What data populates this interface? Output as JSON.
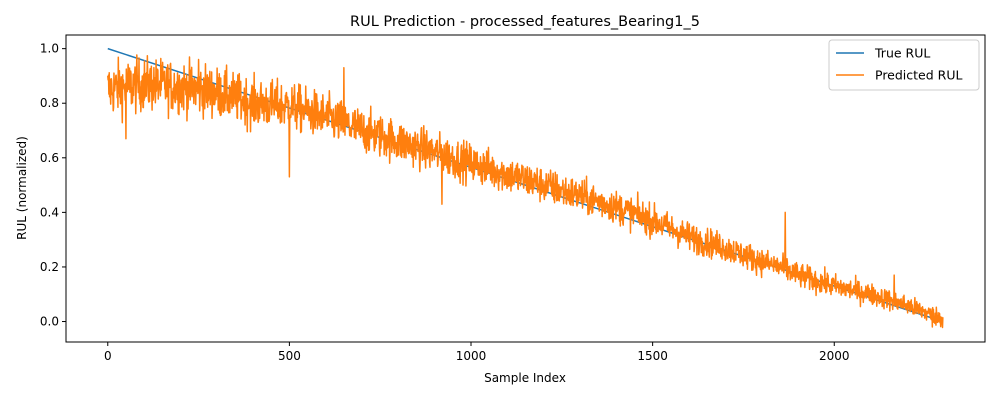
{
  "chart_data": {
    "type": "line",
    "title": "RUL Prediction - processed_features_Bearing1_5",
    "xlabel": "Sample Index",
    "ylabel": "RUL (normalized)",
    "xlim": [
      -115,
      2415
    ],
    "ylim": [
      -0.075,
      1.05
    ],
    "xticks": [
      0,
      500,
      1000,
      1500,
      2000
    ],
    "xtick_labels": [
      "0",
      "500",
      "1000",
      "1500",
      "2000"
    ],
    "yticks": [
      0.0,
      0.2,
      0.4,
      0.6,
      0.8,
      1.0
    ],
    "ytick_labels": [
      "0.0",
      "0.2",
      "0.4",
      "0.6",
      "0.8",
      "1.0"
    ],
    "grid": false,
    "legend_position": "upper right",
    "n_samples": 2300,
    "series": [
      {
        "name": "True RUL",
        "color": "#1f77b4",
        "x": [
          0,
          2299
        ],
        "values": [
          1.0,
          0.0
        ]
      },
      {
        "name": "Predicted RUL",
        "color": "#ff7f0e",
        "x": [
          0,
          100,
          200,
          300,
          400,
          500,
          600,
          700,
          800,
          900,
          1000,
          1100,
          1200,
          1300,
          1400,
          1500,
          1600,
          1700,
          1800,
          1850,
          1900,
          2000,
          2100,
          2200,
          2299
        ],
        "values": [
          0.85,
          0.87,
          0.86,
          0.84,
          0.8,
          0.79,
          0.75,
          0.7,
          0.66,
          0.62,
          0.58,
          0.54,
          0.5,
          0.46,
          0.42,
          0.37,
          0.31,
          0.27,
          0.22,
          0.2,
          0.17,
          0.13,
          0.1,
          0.06,
          0.01
        ],
        "noise_amplitude_start": 0.09,
        "noise_amplitude_end": 0.03,
        "notable_spikes": [
          {
            "x": 250,
            "y": 0.96
          },
          {
            "x": 650,
            "y": 0.93
          },
          {
            "x": 1865,
            "y": 0.4
          },
          {
            "x": 2165,
            "y": 0.17
          }
        ],
        "min_dips": [
          {
            "x": 50,
            "y": 0.67
          },
          {
            "x": 500,
            "y": 0.53
          },
          {
            "x": 920,
            "y": 0.43
          },
          {
            "x": 2270,
            "y": -0.02
          }
        ]
      }
    ]
  },
  "legend": {
    "items": [
      {
        "label": "True RUL",
        "color": "#1f77b4"
      },
      {
        "label": "Predicted RUL",
        "color": "#ff7f0e"
      }
    ]
  }
}
